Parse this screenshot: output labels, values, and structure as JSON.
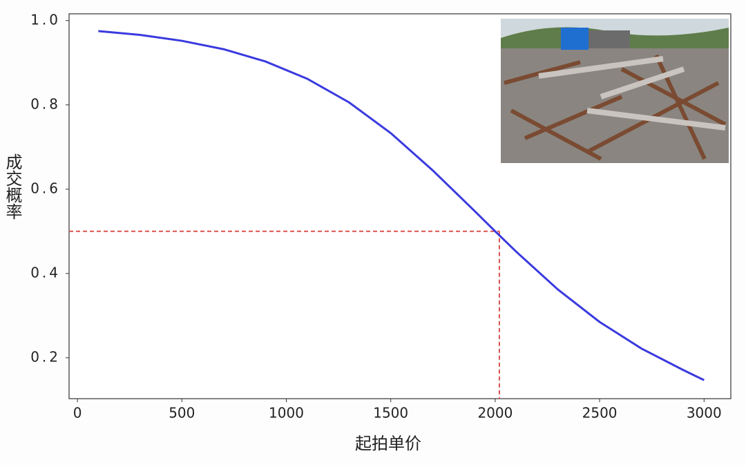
{
  "chart_data": {
    "type": "line",
    "x_label": "起拍单价",
    "y_label": "成交概率",
    "x": [
      100,
      300,
      500,
      700,
      900,
      1100,
      1300,
      1500,
      1700,
      1900,
      2000,
      2100,
      2300,
      2500,
      2700,
      2900,
      3000
    ],
    "series": [
      {
        "color": "#3a3adf",
        "values": [
          0.975,
          0.966,
          0.952,
          0.932,
          0.903,
          0.862,
          0.806,
          0.733,
          0.645,
          0.549,
          0.5,
          0.452,
          0.362,
          0.285,
          0.222,
          0.171,
          0.147
        ]
      }
    ],
    "reference_x": 2020,
    "reference_y": 0.5,
    "reference_color": "#d9534f",
    "xlim": [
      -40,
      3128
    ],
    "ylim": [
      0.103,
      1.016
    ],
    "xticks": [
      0,
      500,
      1000,
      1500,
      2000,
      2500,
      3000
    ],
    "yticks": [
      {
        "value": 1,
        "label": "1.0"
      },
      0.8,
      0.6,
      0.4,
      0.2
    ]
  }
}
